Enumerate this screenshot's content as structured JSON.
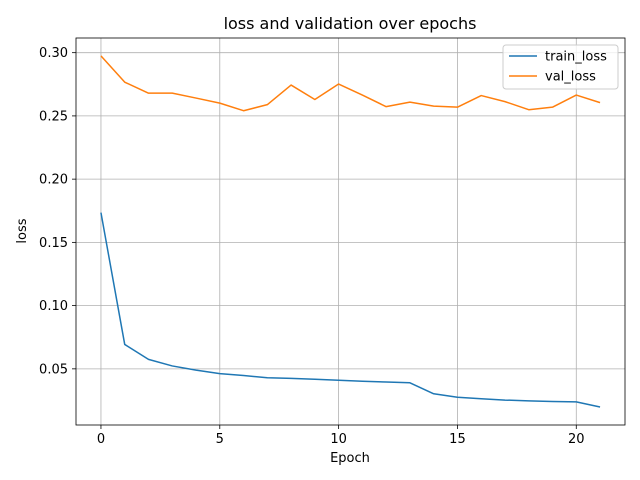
{
  "chart_data": {
    "type": "line",
    "title": "loss and validation over epochs",
    "xlabel": "Epoch",
    "ylabel": "loss",
    "xlim": [
      -1.05,
      22.05
    ],
    "ylim": [
      0.0056,
      0.3116
    ],
    "xticks": [
      0,
      5,
      10,
      15,
      20
    ],
    "yticks": [
      0.05,
      0.1,
      0.15,
      0.2,
      0.25,
      0.3
    ],
    "ytick_labels": [
      "0.05",
      "0.10",
      "0.15",
      "0.20",
      "0.25",
      "0.30"
    ],
    "grid": true,
    "legend": "top-right",
    "x": [
      0,
      1,
      2,
      3,
      4,
      5,
      6,
      7,
      8,
      9,
      10,
      11,
      12,
      13,
      14,
      15,
      16,
      17,
      18,
      19,
      20,
      21
    ],
    "series": [
      {
        "name": "train_loss",
        "color": "#1f77b4",
        "values": [
          0.1735,
          0.0693,
          0.0575,
          0.0523,
          0.049,
          0.0462,
          0.0447,
          0.043,
          0.0425,
          0.0418,
          0.041,
          0.0402,
          0.0396,
          0.039,
          0.0303,
          0.0275,
          0.0264,
          0.0253,
          0.0247,
          0.0242,
          0.0239,
          0.0198
        ]
      },
      {
        "name": "val_loss",
        "color": "#ff7f0e",
        "values": [
          0.2975,
          0.2767,
          0.268,
          0.268,
          0.2641,
          0.2601,
          0.2541,
          0.2589,
          0.2744,
          0.263,
          0.2752,
          0.2665,
          0.2573,
          0.2609,
          0.2577,
          0.2569,
          0.2661,
          0.2613,
          0.2549,
          0.2569,
          0.2665,
          0.2605
        ]
      }
    ]
  }
}
